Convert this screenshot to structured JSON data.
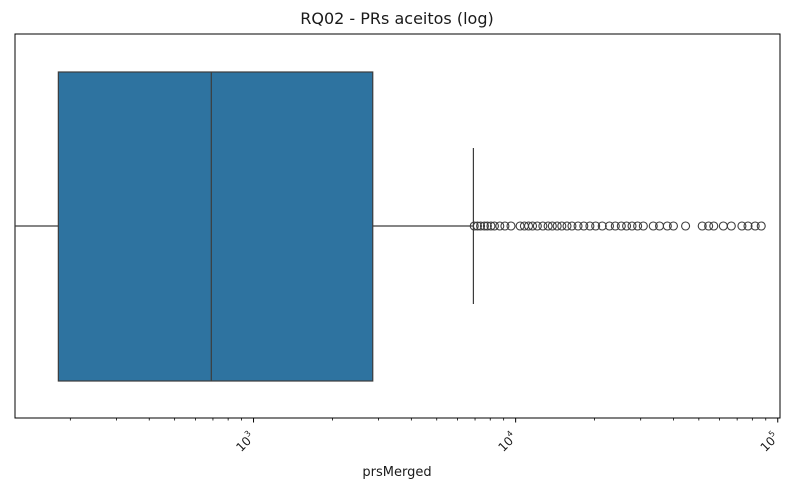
{
  "chart_data": {
    "type": "boxplot",
    "orientation": "horizontal",
    "title": "RQ02 - PRs aceitos (log)",
    "xlabel": "prsMerged",
    "ylabel": "",
    "xscale": "log",
    "xlim": [
      123,
      102000
    ],
    "grid": false,
    "box_color": "#2e73a0",
    "line_color": "#3c3c3c",
    "x_ticks": [
      {
        "value": 1000,
        "base": "10",
        "exp": "3"
      },
      {
        "value": 10000,
        "base": "10",
        "exp": "4"
      },
      {
        "value": 100000,
        "base": "10",
        "exp": "5"
      }
    ],
    "box": {
      "whisker_low": 123,
      "q1": 180,
      "median": 690,
      "q3": 2850,
      "whisker_high": 6900
    },
    "outliers": [
      6950,
      7150,
      7350,
      7600,
      7800,
      8050,
      8300,
      8700,
      9100,
      9600,
      10400,
      10800,
      11200,
      11600,
      12100,
      12700,
      13300,
      13800,
      14400,
      15000,
      15700,
      16400,
      17300,
      18200,
      19200,
      20200,
      21400,
      22800,
      24000,
      25300,
      26500,
      27800,
      29200,
      30700,
      33500,
      35400,
      37900,
      40000,
      44500,
      51500,
      54500,
      57000,
      62000,
      66500,
      73000,
      77000,
      82000,
      86500
    ]
  }
}
